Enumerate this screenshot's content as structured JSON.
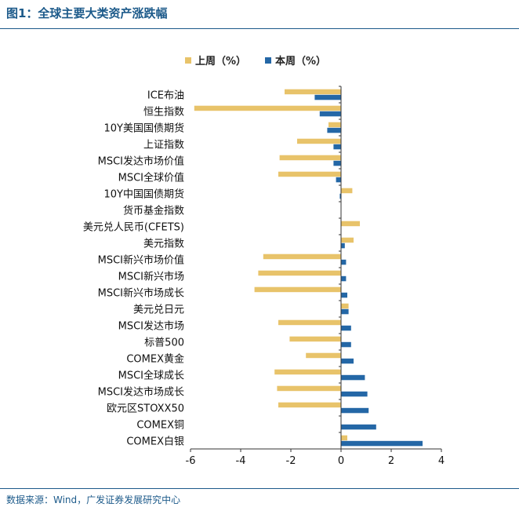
{
  "figure": {
    "title": "图1：全球主要大类资产涨跌幅",
    "source": "数据来源：Wind，广发证券发展研究中心"
  },
  "chart_data": {
    "type": "bar",
    "orientation": "horizontal",
    "categories": [
      "ICE布油",
      "恒生指数",
      "10Y美国国债期货",
      "上证指数",
      "MSCI发达市场价值",
      "MSCI全球价值",
      "10Y中国国债期货",
      "货币基金指数",
      "美元兑人民币(CFETS)",
      "美元指数",
      "MSCI新兴市场价值",
      "MSCI新兴市场",
      "MSCI新兴市场成长",
      "美元兑日元",
      "MSCI发达市场",
      "标普500",
      "COMEX黄金",
      "MSCI全球成长",
      "MSCI发达市场成长",
      "欧元区STOXX50",
      "COMEX铜",
      "COMEX白银"
    ],
    "series": [
      {
        "name": "上周（%）",
        "color": "#e8c36a",
        "values": [
          -2.25,
          -5.85,
          -0.5,
          -1.75,
          -2.45,
          -2.5,
          0.45,
          0.0,
          0.75,
          0.5,
          -3.1,
          -3.3,
          -3.45,
          0.3,
          -2.5,
          -2.05,
          -1.4,
          -2.65,
          -2.55,
          -2.5,
          0.0,
          0.25
        ]
      },
      {
        "name": "本周（%）",
        "color": "#2467a6",
        "values": [
          -1.05,
          -0.85,
          -0.55,
          -0.3,
          -0.3,
          -0.2,
          -0.05,
          0.0,
          0.0,
          0.15,
          0.2,
          0.2,
          0.25,
          0.3,
          0.4,
          0.4,
          0.5,
          0.95,
          1.05,
          1.1,
          1.4,
          3.25
        ]
      }
    ],
    "xlim": [
      -6,
      4
    ],
    "xticks": [
      "-6",
      "-4",
      "-2",
      "0",
      "2",
      "4"
    ],
    "legend_position": "top",
    "grid": false
  }
}
